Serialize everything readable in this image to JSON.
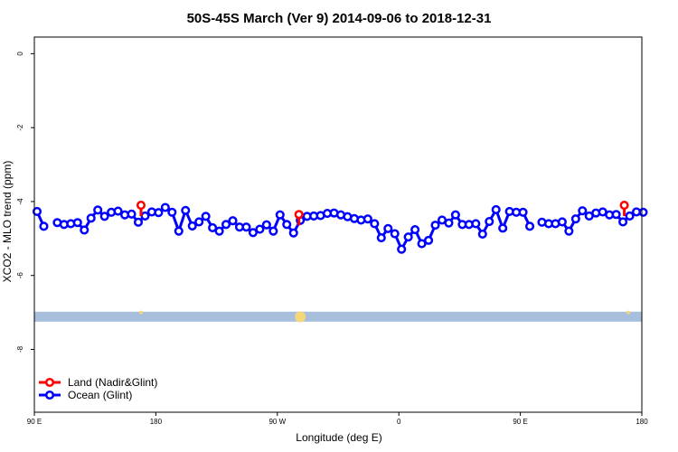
{
  "chart_data": {
    "type": "line",
    "title": "50S-45S March (Ver 9)   2014-09-06 to 2018-12-31",
    "xlabel": "Longitude (deg E)",
    "ylabel": "XCO2 - MLO trend (ppm)",
    "ylim": [
      -9.7,
      0.45
    ],
    "xlim_deg_east": [
      90,
      540
    ],
    "x_ticks": [
      {
        "value": 90,
        "label": "90 E"
      },
      {
        "value": 180,
        "label": "180"
      },
      {
        "value": 270,
        "label": "90 W"
      },
      {
        "value": 360,
        "label": "0"
      },
      {
        "value": 450,
        "label": "90 E"
      },
      {
        "value": 540,
        "label": "180"
      }
    ],
    "y_ticks": [
      {
        "value": 0,
        "label": "0"
      },
      {
        "value": -2,
        "label": "-2"
      },
      {
        "value": -4,
        "label": "-4"
      },
      {
        "value": -6,
        "label": "-6"
      },
      {
        "value": -8,
        "label": "-8"
      }
    ],
    "legend_position": "bottom-left",
    "band": {
      "y_from": -7.25,
      "y_to": -6.98,
      "color": "#a7bfdd"
    },
    "band_markers": [
      {
        "x": 169,
        "y": -7.0,
        "size": 2
      },
      {
        "x": 287,
        "y": -7.12,
        "size": 6
      },
      {
        "x": 530,
        "y": -7.0,
        "size": 2
      }
    ],
    "series": [
      {
        "name": "Land (Nadir&Glint)",
        "color": "#ff0000",
        "points": [
          [
            169,
            -4.1
          ],
          [
            286,
            -4.35
          ],
          [
            527,
            -4.1
          ]
        ]
      },
      {
        "name": "Ocean (Glint)",
        "color": "#0000ff",
        "segments": [
          [
            [
              92,
              -4.27
            ],
            [
              97,
              -4.67
            ]
          ],
          [
            [
              107,
              -4.57
            ],
            [
              112,
              -4.62
            ],
            [
              117,
              -4.6
            ],
            [
              122,
              -4.57
            ],
            [
              127,
              -4.77
            ],
            [
              132,
              -4.45
            ],
            [
              137,
              -4.23
            ],
            [
              142,
              -4.4
            ],
            [
              147,
              -4.29
            ],
            [
              152,
              -4.26
            ],
            [
              157,
              -4.36
            ],
            [
              162,
              -4.34
            ],
            [
              167,
              -4.56
            ],
            [
              172,
              -4.39
            ],
            [
              177,
              -4.28
            ],
            [
              182,
              -4.3
            ],
            [
              187,
              -4.16
            ],
            [
              192,
              -4.29
            ],
            [
              197,
              -4.8
            ],
            [
              202,
              -4.24
            ],
            [
              207,
              -4.66
            ],
            [
              212,
              -4.55
            ],
            [
              217,
              -4.4
            ],
            [
              222,
              -4.71
            ],
            [
              227,
              -4.8
            ],
            [
              232,
              -4.62
            ],
            [
              237,
              -4.52
            ],
            [
              242,
              -4.69
            ],
            [
              247,
              -4.69
            ],
            [
              252,
              -4.84
            ],
            [
              257,
              -4.75
            ],
            [
              262,
              -4.63
            ],
            [
              267,
              -4.8
            ],
            [
              272,
              -4.36
            ],
            [
              277,
              -4.62
            ],
            [
              282,
              -4.85
            ],
            [
              287,
              -4.51
            ],
            [
              292,
              -4.4
            ],
            [
              297,
              -4.39
            ],
            [
              302,
              -4.38
            ],
            [
              307,
              -4.32
            ],
            [
              312,
              -4.31
            ],
            [
              317,
              -4.36
            ],
            [
              322,
              -4.41
            ],
            [
              327,
              -4.46
            ],
            [
              332,
              -4.5
            ],
            [
              337,
              -4.47
            ],
            [
              342,
              -4.6
            ],
            [
              347,
              -4.98
            ],
            [
              352,
              -4.73
            ],
            [
              357,
              -4.87
            ],
            [
              362,
              -5.29
            ],
            [
              367,
              -4.96
            ],
            [
              372,
              -4.76
            ],
            [
              377,
              -5.14
            ],
            [
              382,
              -5.05
            ],
            [
              387,
              -4.64
            ],
            [
              392,
              -4.5
            ],
            [
              397,
              -4.58
            ],
            [
              402,
              -4.36
            ],
            [
              407,
              -4.62
            ],
            [
              412,
              -4.62
            ],
            [
              417,
              -4.6
            ],
            [
              422,
              -4.88
            ],
            [
              427,
              -4.54
            ],
            [
              432,
              -4.22
            ],
            [
              437,
              -4.72
            ],
            [
              442,
              -4.27
            ],
            [
              447,
              -4.29
            ],
            [
              452,
              -4.29
            ],
            [
              457,
              -4.67
            ]
          ],
          [
            [
              466,
              -4.56
            ],
            [
              471,
              -4.6
            ],
            [
              476,
              -4.6
            ],
            [
              481,
              -4.55
            ],
            [
              486,
              -4.8
            ],
            [
              491,
              -4.47
            ],
            [
              496,
              -4.25
            ],
            [
              501,
              -4.39
            ],
            [
              506,
              -4.31
            ],
            [
              511,
              -4.28
            ],
            [
              516,
              -4.36
            ],
            [
              521,
              -4.35
            ],
            [
              526,
              -4.55
            ],
            [
              531,
              -4.39
            ],
            [
              536,
              -4.28
            ],
            [
              541,
              -4.29
            ]
          ]
        ]
      }
    ]
  }
}
